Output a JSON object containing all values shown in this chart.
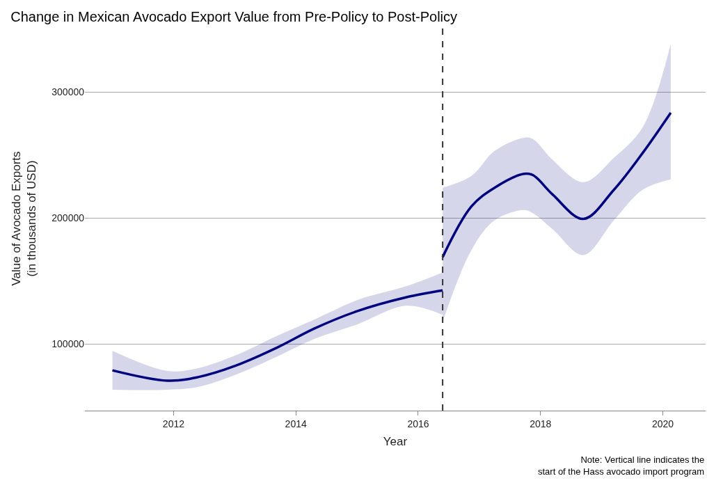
{
  "chart_data": {
    "type": "line",
    "title": "Change in Mexican Avocado Export Value from Pre-Policy to Post-Policy",
    "xlabel": "Year",
    "ylabel": "Value of Avocado Exports\n(in thousands of USD)",
    "annotations": [
      "Note: Vertical line indicates the\nstart of the Hass avocado import program"
    ],
    "series": [
      {
        "color": "#00007f",
        "x": [
          2011.0,
          2011.9,
          2012.4,
          2013.0,
          2013.7,
          2014.3,
          2015.0,
          2015.8,
          2016.4
        ],
        "values": [
          79000,
          70800,
          73600,
          82400,
          97200,
          112100,
          125900,
          136900,
          142400
        ],
        "lower": [
          63600,
          63600,
          65800,
          75200,
          90100,
          103900,
          115400,
          130300,
          123100
        ],
        "upper": [
          94500,
          78500,
          80700,
          90600,
          106600,
          119300,
          134700,
          145700,
          156700
        ]
      },
      {
        "color": "#00007f",
        "x": [
          2016.4,
          2016.87,
          2017.25,
          2017.73,
          2017.88,
          2018.2,
          2018.7,
          2019.2,
          2019.67,
          2020.13
        ],
        "values": [
          168900,
          209100,
          224000,
          235000,
          233900,
          218500,
          199200,
          222300,
          251500,
          283500
        ],
        "lower": [
          117600,
          174400,
          198100,
          206300,
          203600,
          190900,
          170500,
          198100,
          222300,
          230600
        ],
        "upper": [
          224000,
          233300,
          253200,
          263600,
          262500,
          246000,
          228400,
          247700,
          271900,
          338000
        ]
      }
    ],
    "xlim": [
      2010.55,
      2020.7
    ],
    "xticks": [
      2012,
      2014,
      2016,
      2018,
      2020
    ],
    "ylim": [
      47000,
      352000
    ],
    "yticks": [
      100000,
      200000,
      300000
    ],
    "grid": "y",
    "line_style": "solid",
    "marker": "none",
    "ref_lines": [
      {
        "axis": "x",
        "value": 2016.4,
        "color": "#333333",
        "line_style": "dashed"
      }
    ]
  }
}
